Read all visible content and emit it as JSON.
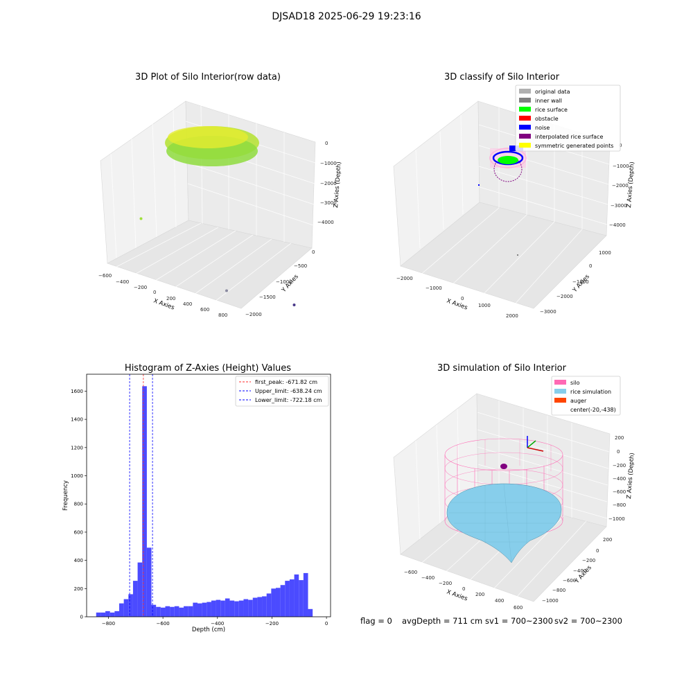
{
  "figure": {
    "title": "DJSAD18 2025-06-29 19:23:16",
    "status": {
      "flag": "flag = 0",
      "avg_depth": "avgDepth = 711 cm",
      "sv1": "sv1 = 700~2300",
      "sv2": "sv2 = 700~2300"
    }
  },
  "colors": {
    "histogram_bar": "#4b4bff",
    "first_peak": "#ff2a2a",
    "limit": "#0000ff",
    "original_data": "#b0b0b0",
    "inner_wall": "#808080",
    "rice_surface": "#00ff00",
    "obstacle": "#ff0000",
    "noise": "#0000ff",
    "interpolated_rice_surface": "#800080",
    "symmetric_generated_points": "#ffff00",
    "silo": "#ff69b4",
    "rice_simulation": "#87ceeb",
    "auger": "#ff4500",
    "raw_points": "#9fe03a"
  },
  "chart_data": [
    {
      "type": "scatter",
      "projection": "3d",
      "title": "3D Plot of Silo Interior(row data)",
      "xlabel": "X Axies",
      "ylabel": "Y Axies",
      "zlabel": "Z Axies (Depth)",
      "x_ticks": [
        "−600",
        "−400",
        "−200",
        "0",
        "200",
        "400",
        "600",
        "800"
      ],
      "y_ticks": [
        "0",
        "−500",
        "−1000",
        "−1500",
        "−2000"
      ],
      "z_ticks": [
        "0",
        "−1000",
        "−2000",
        "−3000",
        "−4000"
      ],
      "series": [
        {
          "points": [
            {
              "x": 100,
              "y": -500,
              "z": -600
            },
            {
              "x": -500,
              "y": -600,
              "z": -2100
            },
            {
              "x": 200,
              "y": -900,
              "z": -3700
            },
            {
              "x": 700,
              "y": -1300,
              "z": -4300
            }
          ]
        }
      ]
    },
    {
      "type": "scatter",
      "projection": "3d",
      "title": "3D classify of Silo Interior",
      "xlabel": "X Axies",
      "ylabel": "Y Axies",
      "zlabel": "Z Axies (Depth)",
      "x_ticks": [
        "−2000",
        "−1000",
        "0",
        "1000",
        "2000"
      ],
      "y_ticks": [
        "1000",
        "0",
        "−1000",
        "−2000",
        "−3000"
      ],
      "z_ticks": [
        "0",
        "−1000",
        "−2000",
        "−3000",
        "−4000"
      ],
      "legend": [
        "original data",
        "inner wall",
        "rice surface",
        "obstacle",
        "noise",
        "interpolated rice surface",
        "symmetric generated points"
      ],
      "legend_position": "top-right"
    },
    {
      "type": "bar",
      "title": "Histogram of Z-Axies (Height) Values",
      "xlabel": "Depth (cm)",
      "ylabel": "Frequency",
      "xlim": [
        -880,
        15
      ],
      "ylim": [
        0,
        1720
      ],
      "x_ticks": [
        -800,
        -600,
        -400,
        -200,
        0
      ],
      "x_tick_labels": [
        "−800",
        "−600",
        "−400",
        "−200",
        "0"
      ],
      "y_ticks": [
        0,
        200,
        400,
        600,
        800,
        1000,
        1200,
        1400,
        1600
      ],
      "y_tick_labels": [
        "0",
        "200",
        "400",
        "600",
        "800",
        "1000",
        "1200",
        "1400",
        "1600"
      ],
      "bin_start": -845,
      "bin_width": 16.9,
      "values": [
        30,
        30,
        40,
        30,
        40,
        95,
        125,
        160,
        255,
        385,
        1635,
        490,
        85,
        70,
        65,
        75,
        70,
        75,
        65,
        75,
        75,
        100,
        95,
        100,
        105,
        115,
        120,
        115,
        130,
        115,
        110,
        115,
        125,
        120,
        135,
        140,
        145,
        165,
        200,
        205,
        225,
        255,
        265,
        300,
        260,
        310,
        55
      ],
      "lines": [
        {
          "name": "first_peak: -671.82 cm",
          "x": -671.82,
          "color": "#ff2a2a"
        },
        {
          "name": "Upper_limit: -638.24 cm",
          "x": -638.24,
          "color": "#0000ff"
        },
        {
          "name": "Lower_limit: -722.18 cm",
          "x": -722.18,
          "color": "#0000ff"
        }
      ],
      "legend_position": "top-right",
      "grid": false
    },
    {
      "type": "scatter",
      "projection": "3d",
      "title": "3D simulation of Silo Interior",
      "xlabel": "X Axies",
      "ylabel": "Y Axies",
      "zlabel": "Z Axies (Depth)",
      "x_ticks": [
        "−600",
        "−400",
        "−200",
        "0",
        "200",
        "400",
        "600"
      ],
      "y_ticks": [
        "200",
        "0",
        "−200",
        "−400",
        "−600",
        "−800",
        "−1000"
      ],
      "z_ticks": [
        "200",
        "0",
        "−200",
        "−400",
        "−600",
        "−800",
        "−1000"
      ],
      "legend": [
        "silo",
        "rice simulation",
        "auger",
        "center(-20,-438)"
      ],
      "legend_position": "top-right"
    }
  ]
}
